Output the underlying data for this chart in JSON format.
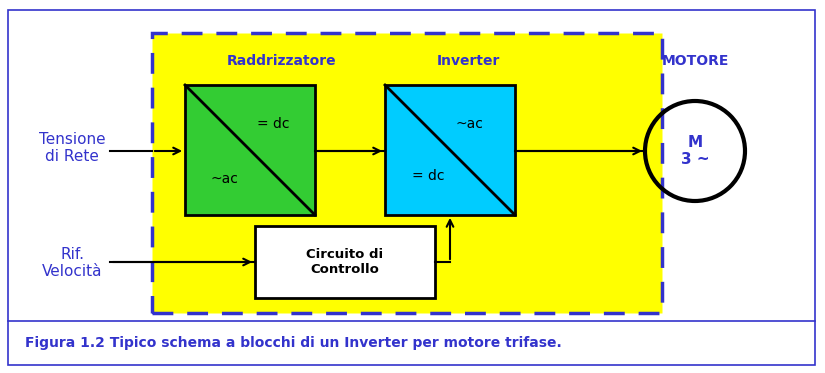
{
  "bg_color": "#ffffff",
  "border_color": "#3333cc",
  "yellow_bg": "#ffff00",
  "green_block": "#33cc33",
  "cyan_block": "#00ccff",
  "white_block": "#ffffff",
  "text_color_blue": "#3333cc",
  "text_color_black": "#000000",
  "fig_caption": "Figura 1.2 Tipico schema a blocchi di un Inverter per motore trifase.",
  "label_raddrizzatore": "Raddrizzatore",
  "label_inverter": "Inverter",
  "label_motore": "MOTORE",
  "label_tensione": "Tensione\ndi Rete",
  "label_rif": "Rif.\nVelocità",
  "label_circuito": "Circuito di\nControllo",
  "label_m": "M\n3 ~",
  "green_top": "= dc",
  "green_bot": "~ac",
  "cyan_top": "~ac",
  "cyan_bot": "= dc",
  "fig_w": 8.25,
  "fig_h": 3.73
}
